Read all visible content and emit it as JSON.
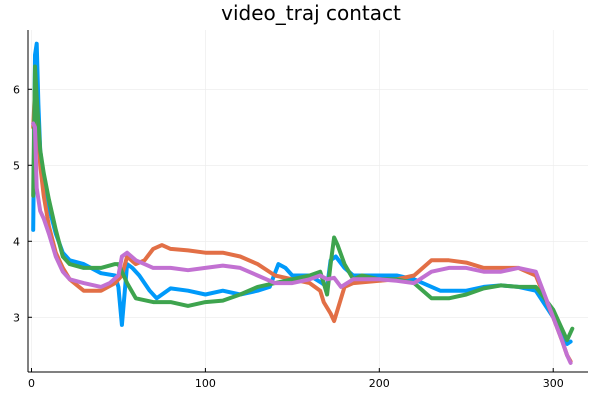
{
  "chart_data": {
    "type": "line",
    "title": "video_traj contact",
    "xlabel": "",
    "ylabel": "",
    "xlim": [
      -2,
      320
    ],
    "ylim": [
      2.28,
      6.78
    ],
    "x_ticks": [
      0,
      100,
      200,
      300
    ],
    "y_ticks": [
      3,
      4,
      5,
      6
    ],
    "grid": true,
    "legend": "none",
    "series": [
      {
        "color": "#009AFA",
        "points": [
          [
            1,
            4.15
          ],
          [
            2,
            6.45
          ],
          [
            3,
            6.6
          ],
          [
            4,
            5.8
          ],
          [
            5,
            5.2
          ],
          [
            7,
            4.8
          ],
          [
            10,
            4.45
          ],
          [
            14,
            4.1
          ],
          [
            18,
            3.85
          ],
          [
            22,
            3.75
          ],
          [
            30,
            3.7
          ],
          [
            40,
            3.58
          ],
          [
            48,
            3.55
          ],
          [
            50,
            3.4
          ],
          [
            52,
            2.9
          ],
          [
            55,
            3.7
          ],
          [
            58,
            3.65
          ],
          [
            62,
            3.55
          ],
          [
            68,
            3.35
          ],
          [
            72,
            3.25
          ],
          [
            80,
            3.38
          ],
          [
            90,
            3.35
          ],
          [
            100,
            3.3
          ],
          [
            110,
            3.35
          ],
          [
            120,
            3.3
          ],
          [
            130,
            3.35
          ],
          [
            137,
            3.4
          ],
          [
            142,
            3.7
          ],
          [
            146,
            3.65
          ],
          [
            150,
            3.55
          ],
          [
            160,
            3.55
          ],
          [
            167,
            3.45
          ],
          [
            170,
            3.4
          ],
          [
            172,
            3.75
          ],
          [
            175,
            3.8
          ],
          [
            180,
            3.65
          ],
          [
            185,
            3.55
          ],
          [
            200,
            3.55
          ],
          [
            210,
            3.55
          ],
          [
            220,
            3.5
          ],
          [
            235,
            3.35
          ],
          [
            250,
            3.35
          ],
          [
            260,
            3.4
          ],
          [
            270,
            3.42
          ],
          [
            280,
            3.4
          ],
          [
            290,
            3.35
          ],
          [
            300,
            3.0
          ],
          [
            305,
            2.75
          ],
          [
            308,
            2.65
          ],
          [
            310,
            2.68
          ]
        ]
      },
      {
        "color": "#E26F46",
        "points": [
          [
            1,
            5.5
          ],
          [
            2,
            6.0
          ],
          [
            3,
            5.8
          ],
          [
            5,
            5.0
          ],
          [
            7,
            4.6
          ],
          [
            10,
            4.2
          ],
          [
            14,
            3.85
          ],
          [
            18,
            3.65
          ],
          [
            22,
            3.5
          ],
          [
            30,
            3.35
          ],
          [
            40,
            3.35
          ],
          [
            48,
            3.45
          ],
          [
            52,
            3.55
          ],
          [
            55,
            3.8
          ],
          [
            60,
            3.7
          ],
          [
            65,
            3.75
          ],
          [
            70,
            3.9
          ],
          [
            75,
            3.95
          ],
          [
            80,
            3.9
          ],
          [
            90,
            3.88
          ],
          [
            100,
            3.85
          ],
          [
            110,
            3.85
          ],
          [
            120,
            3.8
          ],
          [
            130,
            3.7
          ],
          [
            140,
            3.55
          ],
          [
            150,
            3.5
          ],
          [
            160,
            3.45
          ],
          [
            166,
            3.35
          ],
          [
            168,
            3.2
          ],
          [
            172,
            3.05
          ],
          [
            174,
            2.95
          ],
          [
            176,
            3.1
          ],
          [
            180,
            3.4
          ],
          [
            185,
            3.45
          ],
          [
            200,
            3.48
          ],
          [
            210,
            3.5
          ],
          [
            220,
            3.55
          ],
          [
            225,
            3.65
          ],
          [
            230,
            3.75
          ],
          [
            240,
            3.75
          ],
          [
            250,
            3.72
          ],
          [
            260,
            3.65
          ],
          [
            270,
            3.65
          ],
          [
            280,
            3.65
          ],
          [
            290,
            3.55
          ],
          [
            300,
            3.0
          ],
          [
            305,
            2.7
          ],
          [
            308,
            2.5
          ],
          [
            310,
            2.42
          ]
        ]
      },
      {
        "color": "#3EA44E",
        "points": [
          [
            1,
            4.6
          ],
          [
            2,
            6.3
          ],
          [
            3,
            5.9
          ],
          [
            5,
            5.2
          ],
          [
            7,
            4.9
          ],
          [
            10,
            4.55
          ],
          [
            14,
            4.15
          ],
          [
            18,
            3.8
          ],
          [
            22,
            3.7
          ],
          [
            30,
            3.65
          ],
          [
            40,
            3.65
          ],
          [
            48,
            3.7
          ],
          [
            50,
            3.7
          ],
          [
            55,
            3.45
          ],
          [
            60,
            3.25
          ],
          [
            70,
            3.2
          ],
          [
            80,
            3.2
          ],
          [
            90,
            3.15
          ],
          [
            100,
            3.2
          ],
          [
            110,
            3.22
          ],
          [
            120,
            3.3
          ],
          [
            130,
            3.4
          ],
          [
            140,
            3.45
          ],
          [
            150,
            3.5
          ],
          [
            160,
            3.55
          ],
          [
            166,
            3.6
          ],
          [
            168,
            3.45
          ],
          [
            170,
            3.3
          ],
          [
            172,
            3.7
          ],
          [
            174,
            4.05
          ],
          [
            176,
            3.95
          ],
          [
            180,
            3.7
          ],
          [
            185,
            3.5
          ],
          [
            190,
            3.55
          ],
          [
            200,
            3.5
          ],
          [
            210,
            3.5
          ],
          [
            220,
            3.45
          ],
          [
            230,
            3.25
          ],
          [
            240,
            3.25
          ],
          [
            250,
            3.3
          ],
          [
            260,
            3.38
          ],
          [
            270,
            3.42
          ],
          [
            280,
            3.4
          ],
          [
            290,
            3.4
          ],
          [
            300,
            3.1
          ],
          [
            305,
            2.85
          ],
          [
            308,
            2.7
          ],
          [
            311,
            2.85
          ]
        ]
      },
      {
        "color": "#C271D2",
        "points": [
          [
            1,
            5.55
          ],
          [
            2,
            5.5
          ],
          [
            3,
            4.7
          ],
          [
            5,
            4.4
          ],
          [
            7,
            4.3
          ],
          [
            10,
            4.1
          ],
          [
            14,
            3.8
          ],
          [
            18,
            3.6
          ],
          [
            22,
            3.5
          ],
          [
            30,
            3.45
          ],
          [
            40,
            3.4
          ],
          [
            45,
            3.45
          ],
          [
            50,
            3.55
          ],
          [
            52,
            3.8
          ],
          [
            55,
            3.85
          ],
          [
            60,
            3.75
          ],
          [
            65,
            3.7
          ],
          [
            70,
            3.65
          ],
          [
            80,
            3.65
          ],
          [
            90,
            3.62
          ],
          [
            100,
            3.65
          ],
          [
            110,
            3.68
          ],
          [
            120,
            3.65
          ],
          [
            130,
            3.55
          ],
          [
            140,
            3.45
          ],
          [
            150,
            3.45
          ],
          [
            160,
            3.5
          ],
          [
            166,
            3.55
          ],
          [
            170,
            3.5
          ],
          [
            174,
            3.52
          ],
          [
            178,
            3.4
          ],
          [
            185,
            3.5
          ],
          [
            200,
            3.5
          ],
          [
            210,
            3.48
          ],
          [
            220,
            3.45
          ],
          [
            230,
            3.6
          ],
          [
            240,
            3.65
          ],
          [
            250,
            3.65
          ],
          [
            260,
            3.6
          ],
          [
            270,
            3.6
          ],
          [
            280,
            3.65
          ],
          [
            290,
            3.6
          ],
          [
            300,
            3.0
          ],
          [
            305,
            2.7
          ],
          [
            308,
            2.5
          ],
          [
            310,
            2.4
          ]
        ]
      }
    ]
  }
}
